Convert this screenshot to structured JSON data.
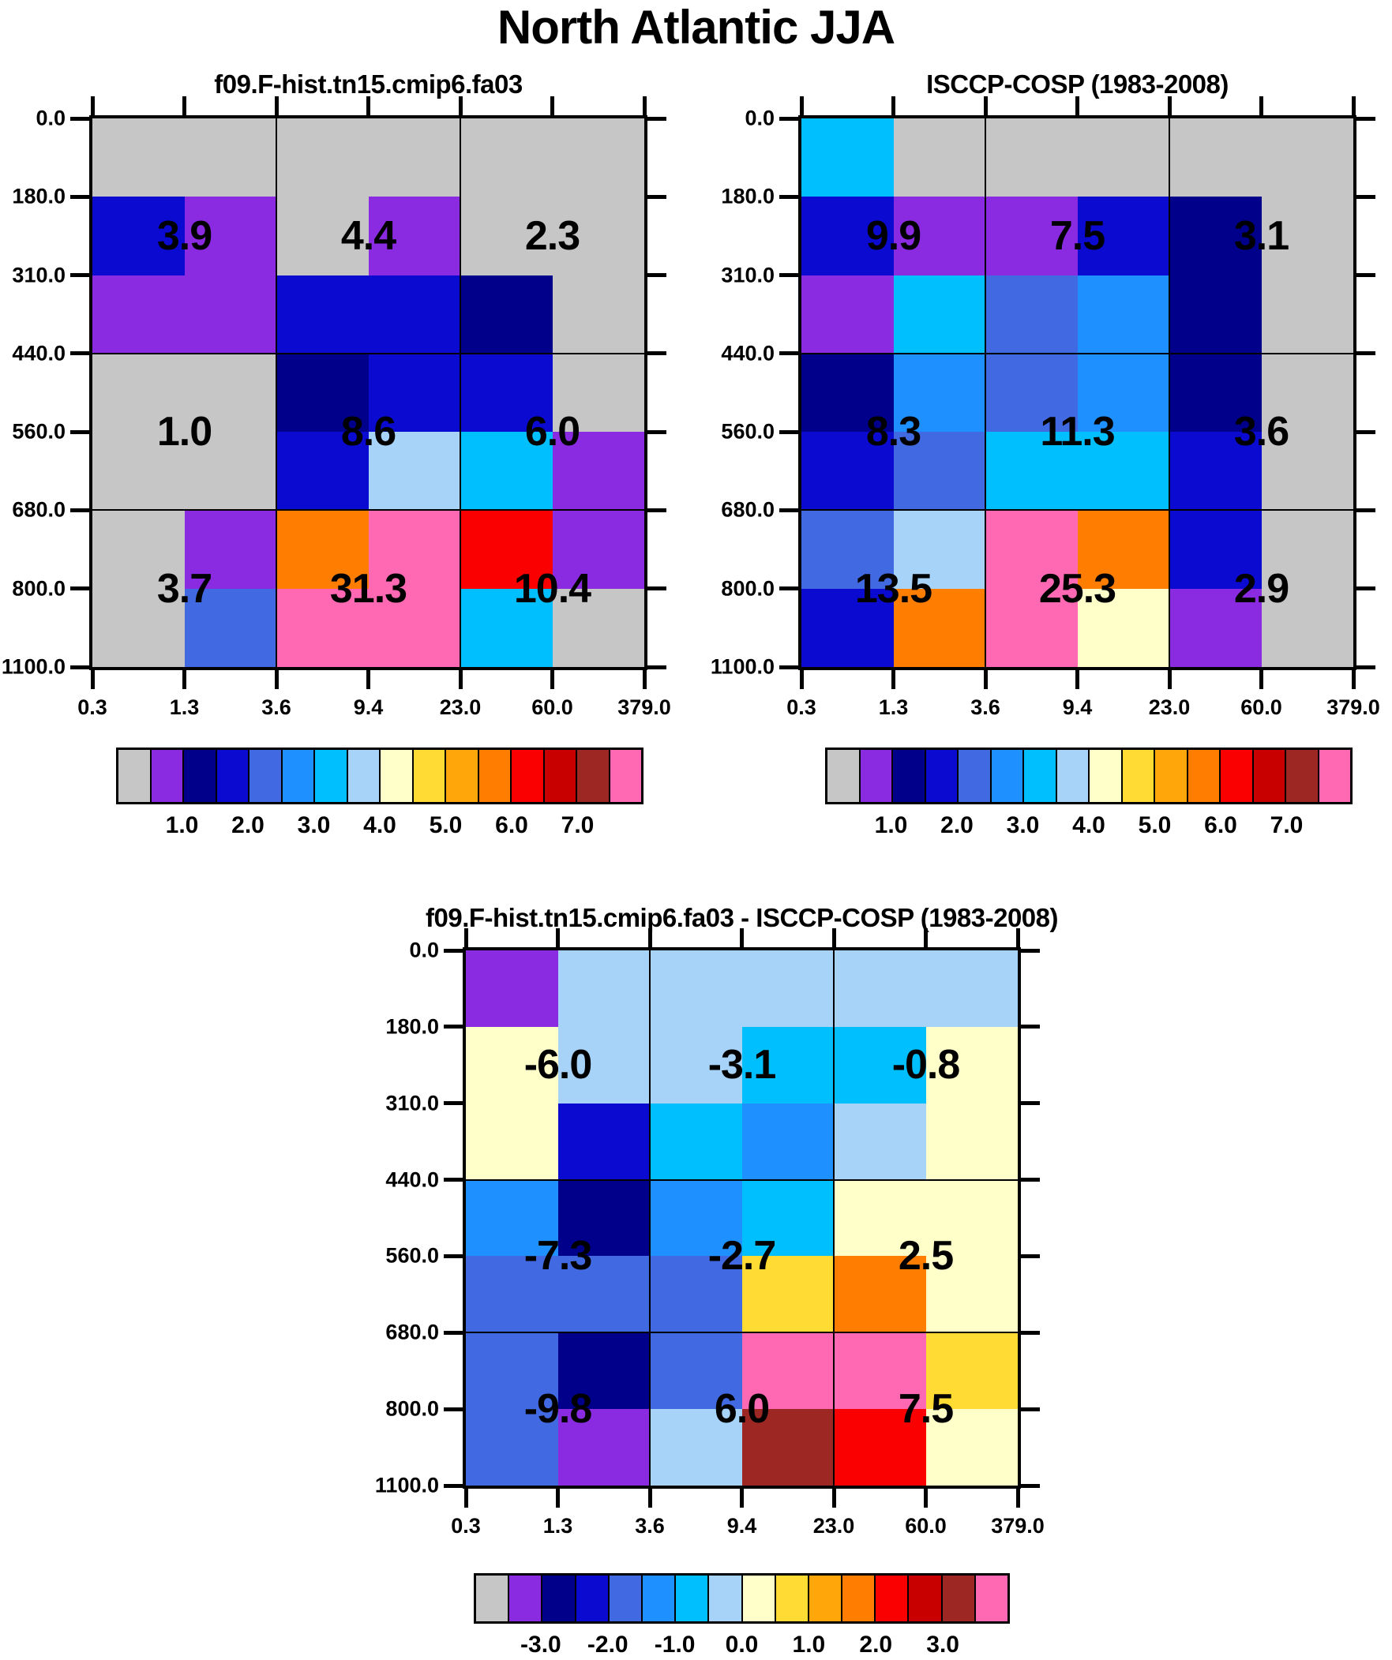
{
  "main_title": "North Atlantic JJA",
  "palette": {
    "gray": "#C6C6C6",
    "blueviolet": "#8A2BE2",
    "navy": "#00008B",
    "blue": "#0A0AD0",
    "royal": "#4169E1",
    "dodger": "#1E90FF",
    "deepsky": "#00BFFF",
    "lightsky": "#A6D3F7",
    "cream": "#FFFFC9",
    "gold": "#FFDB33",
    "orange": "#FFA70A",
    "darkorange": "#FF7D00",
    "red": "#FA0000",
    "red3": "#C80000",
    "brown": "#9C2723",
    "hotpink": "#FF69B4"
  },
  "colorbar_segments": [
    "gray",
    "blueviolet",
    "navy",
    "blue",
    "royal",
    "dodger",
    "deepsky",
    "lightsky",
    "cream",
    "gold",
    "orange",
    "darkorange",
    "red",
    "red3",
    "brown",
    "hotpink"
  ],
  "chart_data": [
    {
      "type": "heatmap",
      "title": "f09.F-hist.tn15.cmip6.fa03",
      "x_ticks": [
        "0.3",
        "1.3",
        "3.6",
        "9.4",
        "23.0",
        "60.0",
        "379.0"
      ],
      "y_ticks": [
        "0.0",
        "180.0",
        "310.0",
        "440.0",
        "560.0",
        "680.0",
        "800.0",
        "1100.0"
      ],
      "grid": "3x3 block lines",
      "cells": [
        [
          "gray",
          "gray",
          "gray",
          "gray",
          "gray",
          "gray"
        ],
        [
          "blue",
          "blueviolet",
          "gray",
          "blueviolet",
          "gray",
          "gray"
        ],
        [
          "blueviolet",
          "blueviolet",
          "blue",
          "blue",
          "navy",
          "gray"
        ],
        [
          "gray",
          "gray",
          "navy",
          "blue",
          "blue",
          "gray"
        ],
        [
          "gray",
          "gray",
          "blue",
          "lightsky",
          "deepsky",
          "blueviolet"
        ],
        [
          "gray",
          "blueviolet",
          "darkorange",
          "hotpink",
          "red",
          "blueviolet"
        ],
        [
          "gray",
          "royal",
          "hotpink",
          "hotpink",
          "deepsky",
          "gray"
        ]
      ],
      "block_values": [
        [
          "3.9",
          "4.4",
          "2.3"
        ],
        [
          "1.0",
          "8.6",
          "6.0"
        ],
        [
          "3.7",
          "31.3",
          "10.4"
        ]
      ],
      "colorbar_labels": [
        "1.0",
        "2.0",
        "3.0",
        "4.0",
        "5.0",
        "6.0",
        "7.0"
      ]
    },
    {
      "type": "heatmap",
      "title": "ISCCP-COSP (1983-2008)",
      "x_ticks": [
        "0.3",
        "1.3",
        "3.6",
        "9.4",
        "23.0",
        "60.0",
        "379.0"
      ],
      "y_ticks": [
        "0.0",
        "180.0",
        "310.0",
        "440.0",
        "560.0",
        "680.0",
        "800.0",
        "1100.0"
      ],
      "grid": "3x3 block lines",
      "cells": [
        [
          "deepsky",
          "gray",
          "gray",
          "gray",
          "gray",
          "gray"
        ],
        [
          "blue",
          "blueviolet",
          "blueviolet",
          "blue",
          "navy",
          "gray"
        ],
        [
          "blueviolet",
          "deepsky",
          "royal",
          "dodger",
          "navy",
          "gray"
        ],
        [
          "navy",
          "dodger",
          "royal",
          "dodger",
          "navy",
          "gray"
        ],
        [
          "blue",
          "royal",
          "deepsky",
          "deepsky",
          "blue",
          "gray"
        ],
        [
          "royal",
          "lightsky",
          "hotpink",
          "darkorange",
          "blue",
          "gray"
        ],
        [
          "blue",
          "darkorange",
          "hotpink",
          "cream",
          "blueviolet",
          "gray"
        ]
      ],
      "block_values": [
        [
          "9.9",
          "7.5",
          "3.1"
        ],
        [
          "8.3",
          "11.3",
          "3.6"
        ],
        [
          "13.5",
          "25.3",
          "2.9"
        ]
      ],
      "colorbar_labels": [
        "1.0",
        "2.0",
        "3.0",
        "4.0",
        "5.0",
        "6.0",
        "7.0"
      ]
    },
    {
      "type": "heatmap",
      "title": "f09.F-hist.tn15.cmip6.fa03 - ISCCP-COSP (1983-2008)",
      "x_ticks": [
        "0.3",
        "1.3",
        "3.6",
        "9.4",
        "23.0",
        "60.0",
        "379.0"
      ],
      "y_ticks": [
        "0.0",
        "180.0",
        "310.0",
        "440.0",
        "560.0",
        "680.0",
        "800.0",
        "1100.0"
      ],
      "grid": "3x3 block lines",
      "cells": [
        [
          "blueviolet",
          "lightsky",
          "lightsky",
          "lightsky",
          "lightsky",
          "lightsky"
        ],
        [
          "cream",
          "lightsky",
          "lightsky",
          "deepsky",
          "deepsky",
          "cream"
        ],
        [
          "cream",
          "blue",
          "deepsky",
          "dodger",
          "lightsky",
          "cream"
        ],
        [
          "dodger",
          "navy",
          "dodger",
          "deepsky",
          "cream",
          "cream"
        ],
        [
          "royal",
          "royal",
          "royal",
          "gold",
          "darkorange",
          "cream"
        ],
        [
          "royal",
          "navy",
          "royal",
          "hotpink",
          "hotpink",
          "gold"
        ],
        [
          "royal",
          "blueviolet",
          "lightsky",
          "brown",
          "red",
          "cream"
        ]
      ],
      "block_values": [
        [
          "-6.0",
          "-3.1",
          "-0.8"
        ],
        [
          "-7.3",
          "-2.7",
          "2.5"
        ],
        [
          "-9.8",
          "6.0",
          "7.5"
        ]
      ],
      "colorbar_labels": [
        "-3.0",
        "-2.0",
        "-1.0",
        "0.0",
        "1.0",
        "2.0",
        "3.0"
      ]
    }
  ]
}
